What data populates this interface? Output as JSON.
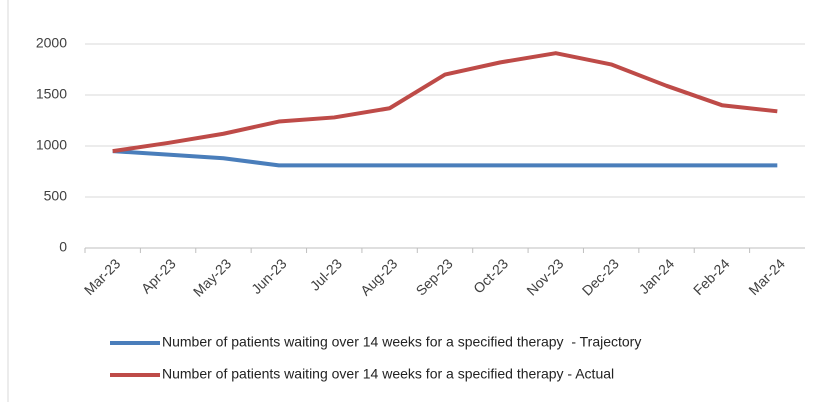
{
  "chart_data": {
    "type": "line",
    "categories": [
      "Mar-23",
      "Apr-23",
      "May-23",
      "Jun-23",
      "Jul-23",
      "Aug-23",
      "Sep-23",
      "Oct-23",
      "Nov-23",
      "Dec-23",
      "Jan-24",
      "Feb-24",
      "Mar-24"
    ],
    "series": [
      {
        "name": "Number of patients waiting over 14 weeks for a specified therapy  - Trajectory",
        "color": "#4a7ebb",
        "values": [
          950,
          915,
          880,
          810,
          810,
          810,
          810,
          810,
          810,
          810,
          810,
          810,
          810
        ]
      },
      {
        "name": "Number of patients waiting over 14 weeks for a specified therapy - Actual",
        "color": "#be4b48",
        "values": [
          950,
          1030,
          1120,
          1240,
          1280,
          1370,
          1700,
          1820,
          1910,
          1800,
          1590,
          1400,
          1340
        ]
      }
    ],
    "ylim": [
      0,
      2000
    ],
    "yticks": [
      0,
      500,
      1000,
      1500,
      2000
    ],
    "grid": true
  }
}
